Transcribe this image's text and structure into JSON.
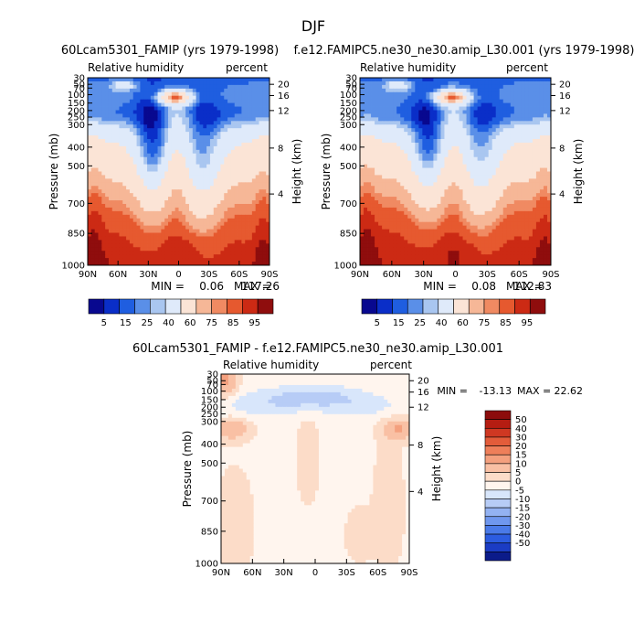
{
  "page_title": "DJF",
  "colors": {
    "sat_scale": [
      "#08088f",
      "#0a2ec8",
      "#1f5ee0",
      "#5a8fe8",
      "#a9c6f0",
      "#dfeafa",
      "#fbe4d6",
      "#f6b797",
      "#f08a62",
      "#e6592f",
      "#cc2a14",
      "#8f0d0d"
    ],
    "diff_scale": [
      "#0b1b8a",
      "#1b3cc4",
      "#2c5ce0",
      "#4a7ae8",
      "#6f97ee",
      "#93b2f2",
      "#b7ccf6",
      "#d8e6fb",
      "#fff5ee",
      "#fcdcc8",
      "#f9c0a4",
      "#f4a07e",
      "#ee7f5a",
      "#e35c3a",
      "#cf3822",
      "#b51d12",
      "#8c0c0c"
    ]
  },
  "chart_data": [
    {
      "type": "heatmap",
      "panel": "left",
      "title": "60Lcam5301_FAMIP (yrs 1979-1998)",
      "subtitle_left": "Relative humidity",
      "subtitle_right": "percent",
      "xlabel": "",
      "ylabel": "Pressure (mb)",
      "ylabel_right": "Height (km)",
      "x_ticks": [
        "90N",
        "60N",
        "30N",
        "0",
        "30S",
        "60S",
        "90S"
      ],
      "y_ticks": [
        "30",
        "50",
        "70",
        "100",
        "150",
        "200",
        "250",
        "300",
        "400",
        "500",
        "700",
        "850",
        "1000"
      ],
      "height_ticks": [
        "20",
        "16",
        "12",
        "8",
        "4"
      ],
      "ylim": [
        1000,
        30
      ],
      "min_label": "MIN =",
      "min": "0.06",
      "max_label": "MAX =",
      "max": "117.26",
      "levels": [
        "5",
        "15",
        "25",
        "40",
        "60",
        "75",
        "85",
        "95"
      ]
    },
    {
      "type": "heatmap",
      "panel": "right",
      "title": "f.e12.FAMIPC5.ne30_ne30.amip_L30.001 (yrs 1979-1998)",
      "subtitle_left": "Relative humidity",
      "subtitle_right": "percent",
      "xlabel": "",
      "ylabel": "Pressure (mb)",
      "ylabel_right": "Height (km)",
      "x_ticks": [
        "90N",
        "60N",
        "30N",
        "0",
        "30S",
        "60S",
        "90S"
      ],
      "y_ticks": [
        "30",
        "50",
        "70",
        "100",
        "150",
        "200",
        "250",
        "300",
        "400",
        "500",
        "700",
        "850",
        "1000"
      ],
      "height_ticks": [
        "20",
        "16",
        "12",
        "8",
        "4"
      ],
      "ylim": [
        1000,
        30
      ],
      "min_label": "MIN =",
      "min": "0.08",
      "max_label": "MAX =",
      "max": "112.83",
      "levels": [
        "5",
        "15",
        "25",
        "40",
        "60",
        "75",
        "85",
        "95"
      ]
    },
    {
      "type": "heatmap",
      "panel": "difference",
      "title": "60Lcam5301_FAMIP - f.e12.FAMIPC5.ne30_ne30.amip_L30.001",
      "subtitle_left": "Relative humidity",
      "subtitle_right": "percent",
      "xlabel": "",
      "ylabel": "Pressure (mb)",
      "ylabel_right": "Height (km)",
      "x_ticks": [
        "90N",
        "60N",
        "30N",
        "0",
        "30S",
        "60S",
        "90S"
      ],
      "y_ticks": [
        "30",
        "50",
        "70",
        "100",
        "150",
        "200",
        "250",
        "300",
        "400",
        "500",
        "700",
        "850",
        "1000"
      ],
      "height_ticks": [
        "20",
        "16",
        "12",
        "8",
        "4"
      ],
      "ylim": [
        1000,
        30
      ],
      "min_label": "MIN =",
      "min": "-13.13",
      "max_label": "MAX =",
      "max": "22.62",
      "levels": [
        "50",
        "40",
        "30",
        "20",
        "15",
        "10",
        "5",
        "0",
        "-5",
        "-10",
        "-15",
        "-20",
        "-30",
        "-40",
        "-50"
      ]
    }
  ]
}
